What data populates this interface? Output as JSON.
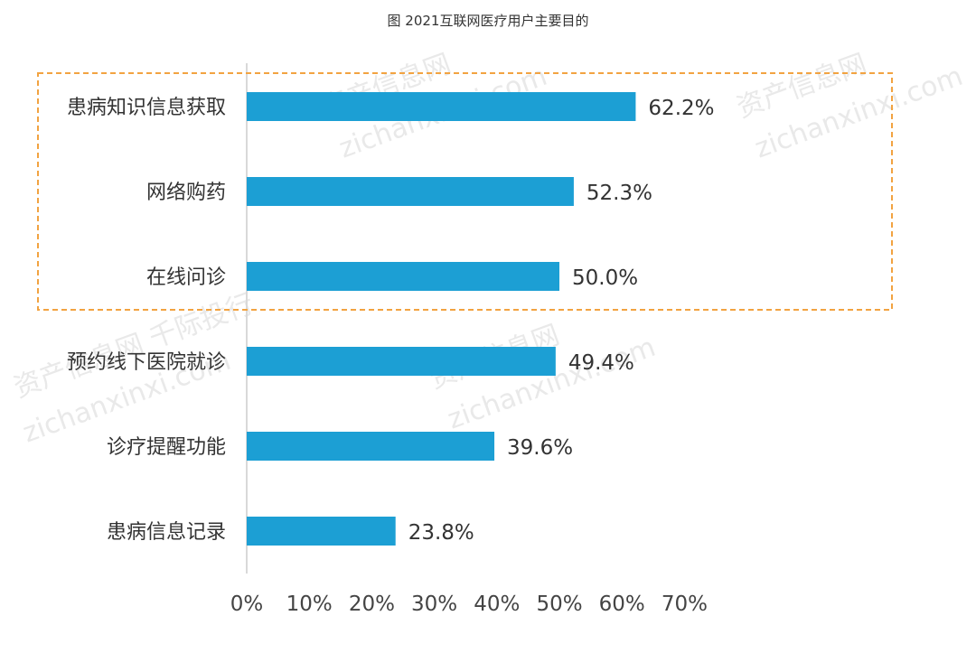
{
  "colors": {
    "bar": "#1c9fd4",
    "highlight": "#f2a341",
    "axis": "#d9d9d9"
  },
  "chart_data": {
    "type": "bar",
    "orientation": "horizontal",
    "title": "图 2021互联网医疗用户主要目的",
    "categories": [
      "患病知识信息获取",
      "网络购药",
      "在线问诊",
      "预约线下医院就诊",
      "诊疗提醒功能",
      "患病信息记录"
    ],
    "values": [
      62.2,
      52.3,
      50.0,
      49.4,
      39.6,
      23.8
    ],
    "value_labels": [
      "62.2%",
      "52.3%",
      "50.0%",
      "49.4%",
      "39.6%",
      "23.8%"
    ],
    "xlim": [
      0,
      70
    ],
    "xticks": [
      0,
      10,
      20,
      30,
      40,
      50,
      60,
      70
    ],
    "xtick_labels": [
      "0%",
      "10%",
      "20%",
      "30%",
      "40%",
      "50%",
      "60%",
      "70%"
    ],
    "grid": false,
    "highlighted_categories": [
      "患病知识信息获取",
      "网络购药",
      "在线问诊"
    ]
  }
}
